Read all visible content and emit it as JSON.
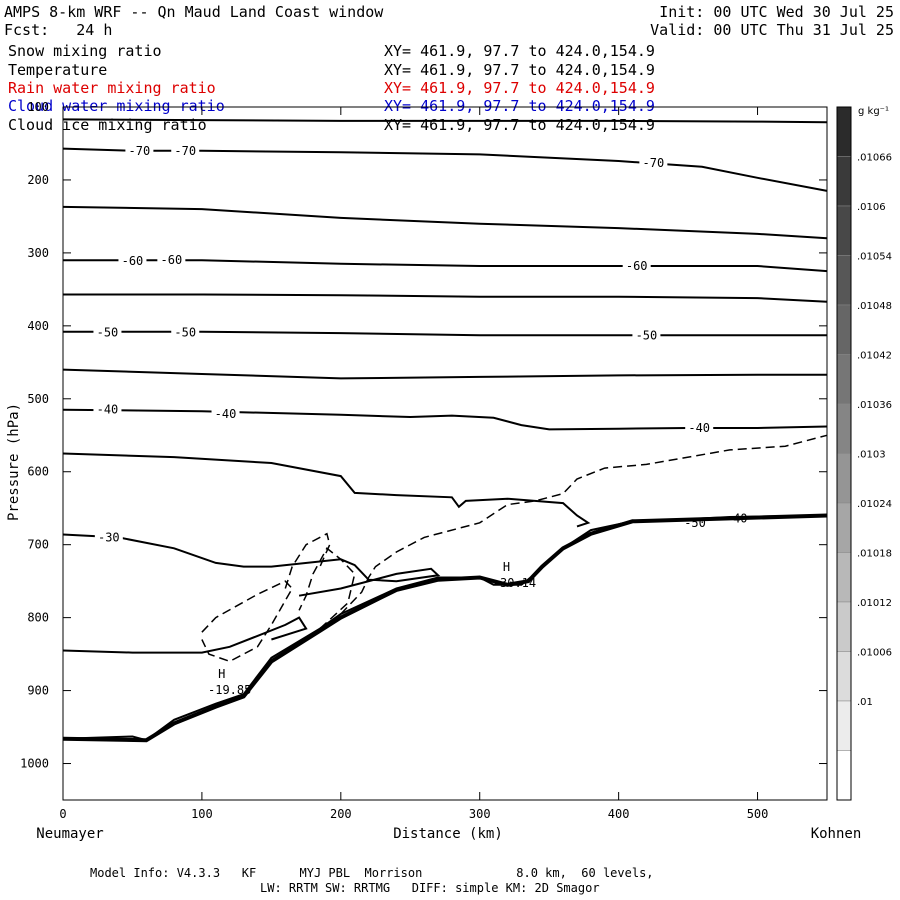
{
  "header": {
    "title": "AMPS 8-km WRF -- Qn Maud Land Coast window",
    "init": "Init: 00 UTC Wed 30 Jul 25",
    "fcst": "Fcst:   24 h",
    "valid": "Valid: 00 UTC Thu 31 Jul 25"
  },
  "fields": [
    {
      "name": "Snow mixing ratio",
      "xy": "XY= 461.9, 97.7 to 424.0,154.9",
      "color": "#000000"
    },
    {
      "name": "Temperature",
      "xy": "XY= 461.9, 97.7 to 424.0,154.9",
      "color": "#000000"
    },
    {
      "name": "Rain water mixing ratio",
      "xy": "XY= 461.9, 97.7 to 424.0,154.9",
      "color": "#dd0000"
    },
    {
      "name": "Cloud water mixing ratio",
      "xy": "XY= 461.9, 97.7 to 424.0,154.9",
      "color": "#0000cc"
    },
    {
      "name": "Cloud ice mixing ratio",
      "xy": "XY= 461.9, 97.7 to 424.0,154.9",
      "color": "#000000"
    }
  ],
  "footer": {
    "line1": "Model Info: V4.3.3   KF      MYJ PBL  Morrison             8.0 km,  60 levels,",
    "line2": "LW: RRTM SW: RRTMG   DIFF: simple KM: 2D Smagor"
  },
  "chart_data": {
    "type": "line",
    "xlabel": "Distance (km)",
    "ylabel": "Pressure (hPa)",
    "xlim": [
      0,
      550
    ],
    "ylim": [
      1050,
      100
    ],
    "x_ticks": [
      0,
      100,
      200,
      300,
      400,
      500
    ],
    "y_ticks": [
      100,
      200,
      300,
      400,
      500,
      600,
      700,
      800,
      900,
      1000
    ],
    "left_end_label": "Neumayer",
    "right_end_label": "Kohnen",
    "colorbar": {
      "unit": "g kg⁻¹",
      "tick_labels": [
        ".01066",
        ".0106",
        ".01054",
        ".01048",
        ".01042",
        ".01036",
        ".0103",
        ".01024",
        ".01018",
        ".01012",
        ".01006",
        ".01"
      ],
      "colors": [
        "#2b2b2b",
        "#3a3a3a",
        "#484848",
        "#575757",
        "#666666",
        "#767676",
        "#858585",
        "#959595",
        "#a6a6a6",
        "#b8b8b8",
        "#cacaca",
        "#dcdcdc",
        "#ececec",
        "#ffffff"
      ]
    },
    "isotherms": [
      {
        "points": [
          [
            0,
            117
          ],
          [
            100,
            118
          ],
          [
            200,
            119
          ],
          [
            300,
            119
          ],
          [
            400,
            119
          ],
          [
            500,
            120
          ],
          [
            550,
            121
          ]
        ]
      },
      {
        "label": "-70",
        "points": [
          [
            0,
            157
          ],
          [
            50,
            160
          ],
          [
            100,
            160
          ],
          [
            200,
            162
          ],
          [
            300,
            165
          ],
          [
            400,
            174
          ],
          [
            460,
            182
          ],
          [
            500,
            197
          ],
          [
            550,
            215
          ]
        ],
        "label_at": [
          [
            55,
            160
          ],
          [
            88,
            160
          ],
          [
            425,
            177
          ]
        ]
      },
      {
        "points": [
          [
            0,
            237
          ],
          [
            100,
            240
          ],
          [
            200,
            252
          ],
          [
            300,
            260
          ],
          [
            400,
            266
          ],
          [
            500,
            274
          ],
          [
            550,
            280
          ]
        ]
      },
      {
        "label": "-60",
        "points": [
          [
            0,
            310
          ],
          [
            100,
            310
          ],
          [
            200,
            315
          ],
          [
            300,
            318
          ],
          [
            400,
            318
          ],
          [
            500,
            318
          ],
          [
            550,
            325
          ]
        ],
        "label_at": [
          [
            50,
            311
          ],
          [
            78,
            310
          ],
          [
            413,
            318
          ]
        ]
      },
      {
        "points": [
          [
            0,
            357
          ],
          [
            100,
            357
          ],
          [
            200,
            358
          ],
          [
            300,
            360
          ],
          [
            400,
            360
          ],
          [
            500,
            362
          ],
          [
            550,
            367
          ]
        ]
      },
      {
        "label": "-50",
        "points": [
          [
            0,
            408
          ],
          [
            100,
            408
          ],
          [
            200,
            410
          ],
          [
            300,
            413
          ],
          [
            400,
            413
          ],
          [
            500,
            413
          ],
          [
            550,
            413
          ]
        ],
        "label_at": [
          [
            32,
            409
          ],
          [
            88,
            409
          ],
          [
            420,
            413
          ]
        ]
      },
      {
        "points": [
          [
            0,
            460
          ],
          [
            100,
            466
          ],
          [
            200,
            472
          ],
          [
            300,
            470
          ],
          [
            400,
            468
          ],
          [
            500,
            467
          ],
          [
            550,
            467
          ]
        ]
      },
      {
        "label": "-40",
        "points": [
          [
            0,
            515
          ],
          [
            100,
            517
          ],
          [
            200,
            522
          ],
          [
            250,
            525
          ],
          [
            280,
            523
          ],
          [
            310,
            526
          ],
          [
            330,
            536
          ],
          [
            350,
            542
          ],
          [
            400,
            541
          ],
          [
            450,
            540
          ],
          [
            500,
            540
          ],
          [
            550,
            538
          ]
        ],
        "label_at": [
          [
            32,
            515
          ],
          [
            117,
            521
          ],
          [
            458,
            540
          ]
        ]
      },
      {
        "points": [
          [
            0,
            575
          ],
          [
            80,
            580
          ],
          [
            150,
            588
          ],
          [
            200,
            606
          ],
          [
            210,
            629
          ],
          [
            240,
            632
          ],
          [
            280,
            635
          ],
          [
            285,
            648
          ],
          [
            290,
            640
          ],
          [
            320,
            637
          ],
          [
            360,
            643
          ],
          [
            370,
            660
          ],
          [
            378,
            670
          ],
          [
            370,
            675
          ]
        ]
      },
      {
        "label": "-30",
        "points": [
          [
            0,
            686
          ],
          [
            40,
            690
          ],
          [
            80,
            705
          ],
          [
            110,
            725
          ],
          [
            130,
            730
          ],
          [
            150,
            730
          ],
          [
            200,
            720
          ],
          [
            210,
            728
          ],
          [
            220,
            748
          ],
          [
            240,
            750
          ],
          [
            270,
            742
          ],
          [
            265,
            733
          ],
          [
            240,
            740
          ],
          [
            200,
            760
          ],
          [
            170,
            770
          ]
        ],
        "label_at": [
          [
            33,
            690
          ]
        ]
      },
      {
        "points": [
          [
            0,
            845
          ],
          [
            50,
            848
          ],
          [
            100,
            848
          ],
          [
            120,
            840
          ],
          [
            140,
            825
          ],
          [
            160,
            810
          ],
          [
            170,
            800
          ],
          [
            175,
            815
          ],
          [
            150,
            830
          ]
        ]
      },
      {
        "points": [
          [
            0,
            966
          ],
          [
            50,
            963
          ],
          [
            60,
            968
          ],
          [
            80,
            940
          ],
          [
            110,
            918
          ],
          [
            130,
            905
          ],
          [
            150,
            855
          ],
          [
            185,
            815
          ],
          [
            200,
            795
          ],
          [
            240,
            760
          ],
          [
            270,
            745
          ],
          [
            300,
            745
          ],
          [
            310,
            755
          ],
          [
            330,
            755
          ],
          [
            340,
            740
          ],
          [
            360,
            705
          ],
          [
            380,
            680
          ],
          [
            410,
            668
          ],
          [
            440,
            666
          ],
          [
            480,
            662
          ],
          [
            550,
            660
          ]
        ]
      }
    ],
    "snow_dashed": [
      {
        "points": [
          [
            100,
            820
          ],
          [
            110,
            800
          ],
          [
            140,
            768
          ],
          [
            160,
            750
          ],
          [
            165,
            760
          ],
          [
            150,
            810
          ],
          [
            140,
            840
          ],
          [
            120,
            860
          ],
          [
            105,
            850
          ],
          [
            100,
            830
          ]
        ]
      },
      {
        "points": [
          [
            200,
            795
          ],
          [
            215,
            765
          ],
          [
            220,
            745
          ],
          [
            225,
            730
          ],
          [
            240,
            710
          ],
          [
            260,
            690
          ],
          [
            300,
            670
          ],
          [
            320,
            645
          ],
          [
            340,
            640
          ],
          [
            360,
            630
          ],
          [
            370,
            610
          ],
          [
            390,
            595
          ],
          [
            420,
            590
          ],
          [
            480,
            570
          ],
          [
            520,
            565
          ],
          [
            550,
            550
          ]
        ]
      },
      {
        "points": [
          [
            185,
            815
          ],
          [
            205,
            780
          ],
          [
            210,
            740
          ],
          [
            200,
            720
          ],
          [
            190,
            705
          ],
          [
            180,
            740
          ],
          [
            175,
            770
          ],
          [
            170,
            790
          ]
        ]
      },
      {
        "points": [
          [
            160,
            760
          ],
          [
            165,
            730
          ],
          [
            175,
            700
          ],
          [
            190,
            685
          ],
          [
            192,
            700
          ],
          [
            185,
            730
          ]
        ]
      }
    ],
    "terrain": [
      [
        0,
        966
      ],
      [
        60,
        968
      ],
      [
        80,
        945
      ],
      [
        110,
        922
      ],
      [
        130,
        908
      ],
      [
        150,
        860
      ],
      [
        185,
        818
      ],
      [
        200,
        800
      ],
      [
        240,
        762
      ],
      [
        270,
        748
      ],
      [
        300,
        745
      ],
      [
        320,
        755
      ],
      [
        335,
        750
      ],
      [
        345,
        730
      ],
      [
        360,
        705
      ],
      [
        380,
        685
      ],
      [
        410,
        668
      ],
      [
        550,
        660
      ]
    ],
    "extrema": [
      {
        "symbol": "H",
        "value": "-19.85",
        "x": 120,
        "p": 905
      },
      {
        "symbol": "H",
        "value": "-30.14",
        "x": 325,
        "p": 758
      }
    ],
    "terrain_labels": [
      {
        "text": "-50",
        "x": 455,
        "p": 670
      },
      {
        "text": "-40",
        "x": 485,
        "p": 664
      }
    ]
  }
}
